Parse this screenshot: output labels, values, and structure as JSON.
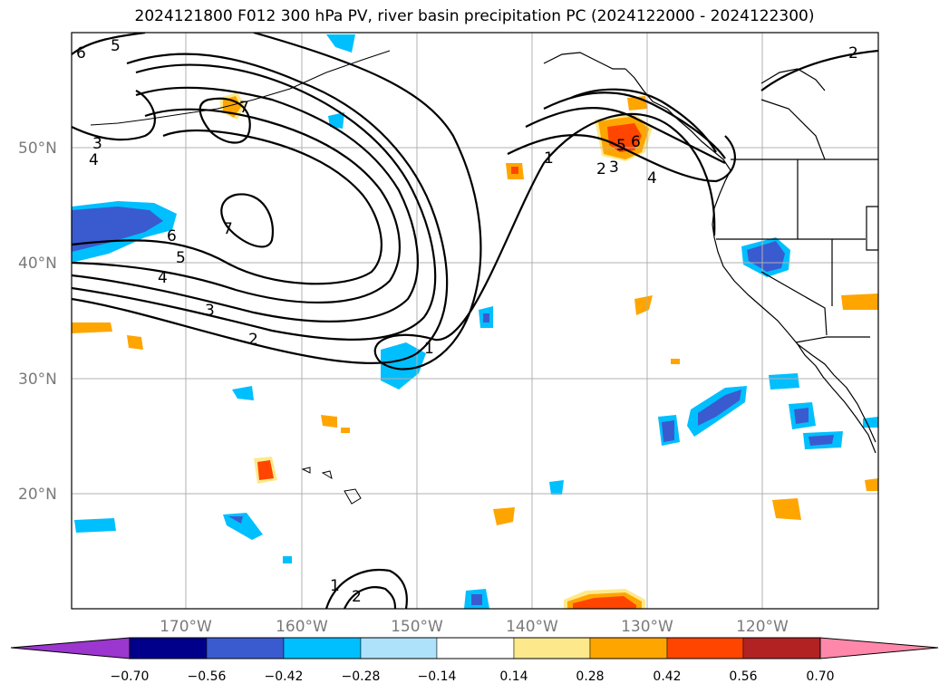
{
  "title": "2024121800 F012 300 hPa PV, river basin precipitation PC (2024122000 - 2024122300)",
  "lat_labels": [
    "50°N",
    "40°N",
    "30°N",
    "20°N"
  ],
  "lon_labels": [
    "170°W",
    "160°W",
    "150°W",
    "140°W",
    "130°W",
    "120°W"
  ],
  "contour_labels": [
    "6",
    "5",
    "7",
    "3",
    "4",
    "7",
    "6",
    "5",
    "4",
    "3",
    "2",
    "1",
    "1",
    "2",
    "3",
    "4",
    "5",
    "6",
    "2",
    "1",
    "2"
  ],
  "colorbar": {
    "ticks": [
      "−0.70",
      "−0.56",
      "−0.42",
      "−0.28",
      "−0.14",
      "0.14",
      "0.28",
      "0.42",
      "0.56",
      "0.70"
    ],
    "colors": [
      "#9b36cf",
      "#00008b",
      "#3a5bd0",
      "#00bfff",
      "#aee2fa",
      "#ffffff",
      "#fde98c",
      "#ffa500",
      "#ff4500",
      "#b22222",
      "#ff88aa"
    ]
  },
  "colors": {
    "neg_light": "#00bfff",
    "neg_mid": "#3a5bd0",
    "pos_light": "#fde98c",
    "pos_mid": "#ffa500",
    "pos_strong": "#ff4500",
    "grid": "#b0b0b0"
  }
}
